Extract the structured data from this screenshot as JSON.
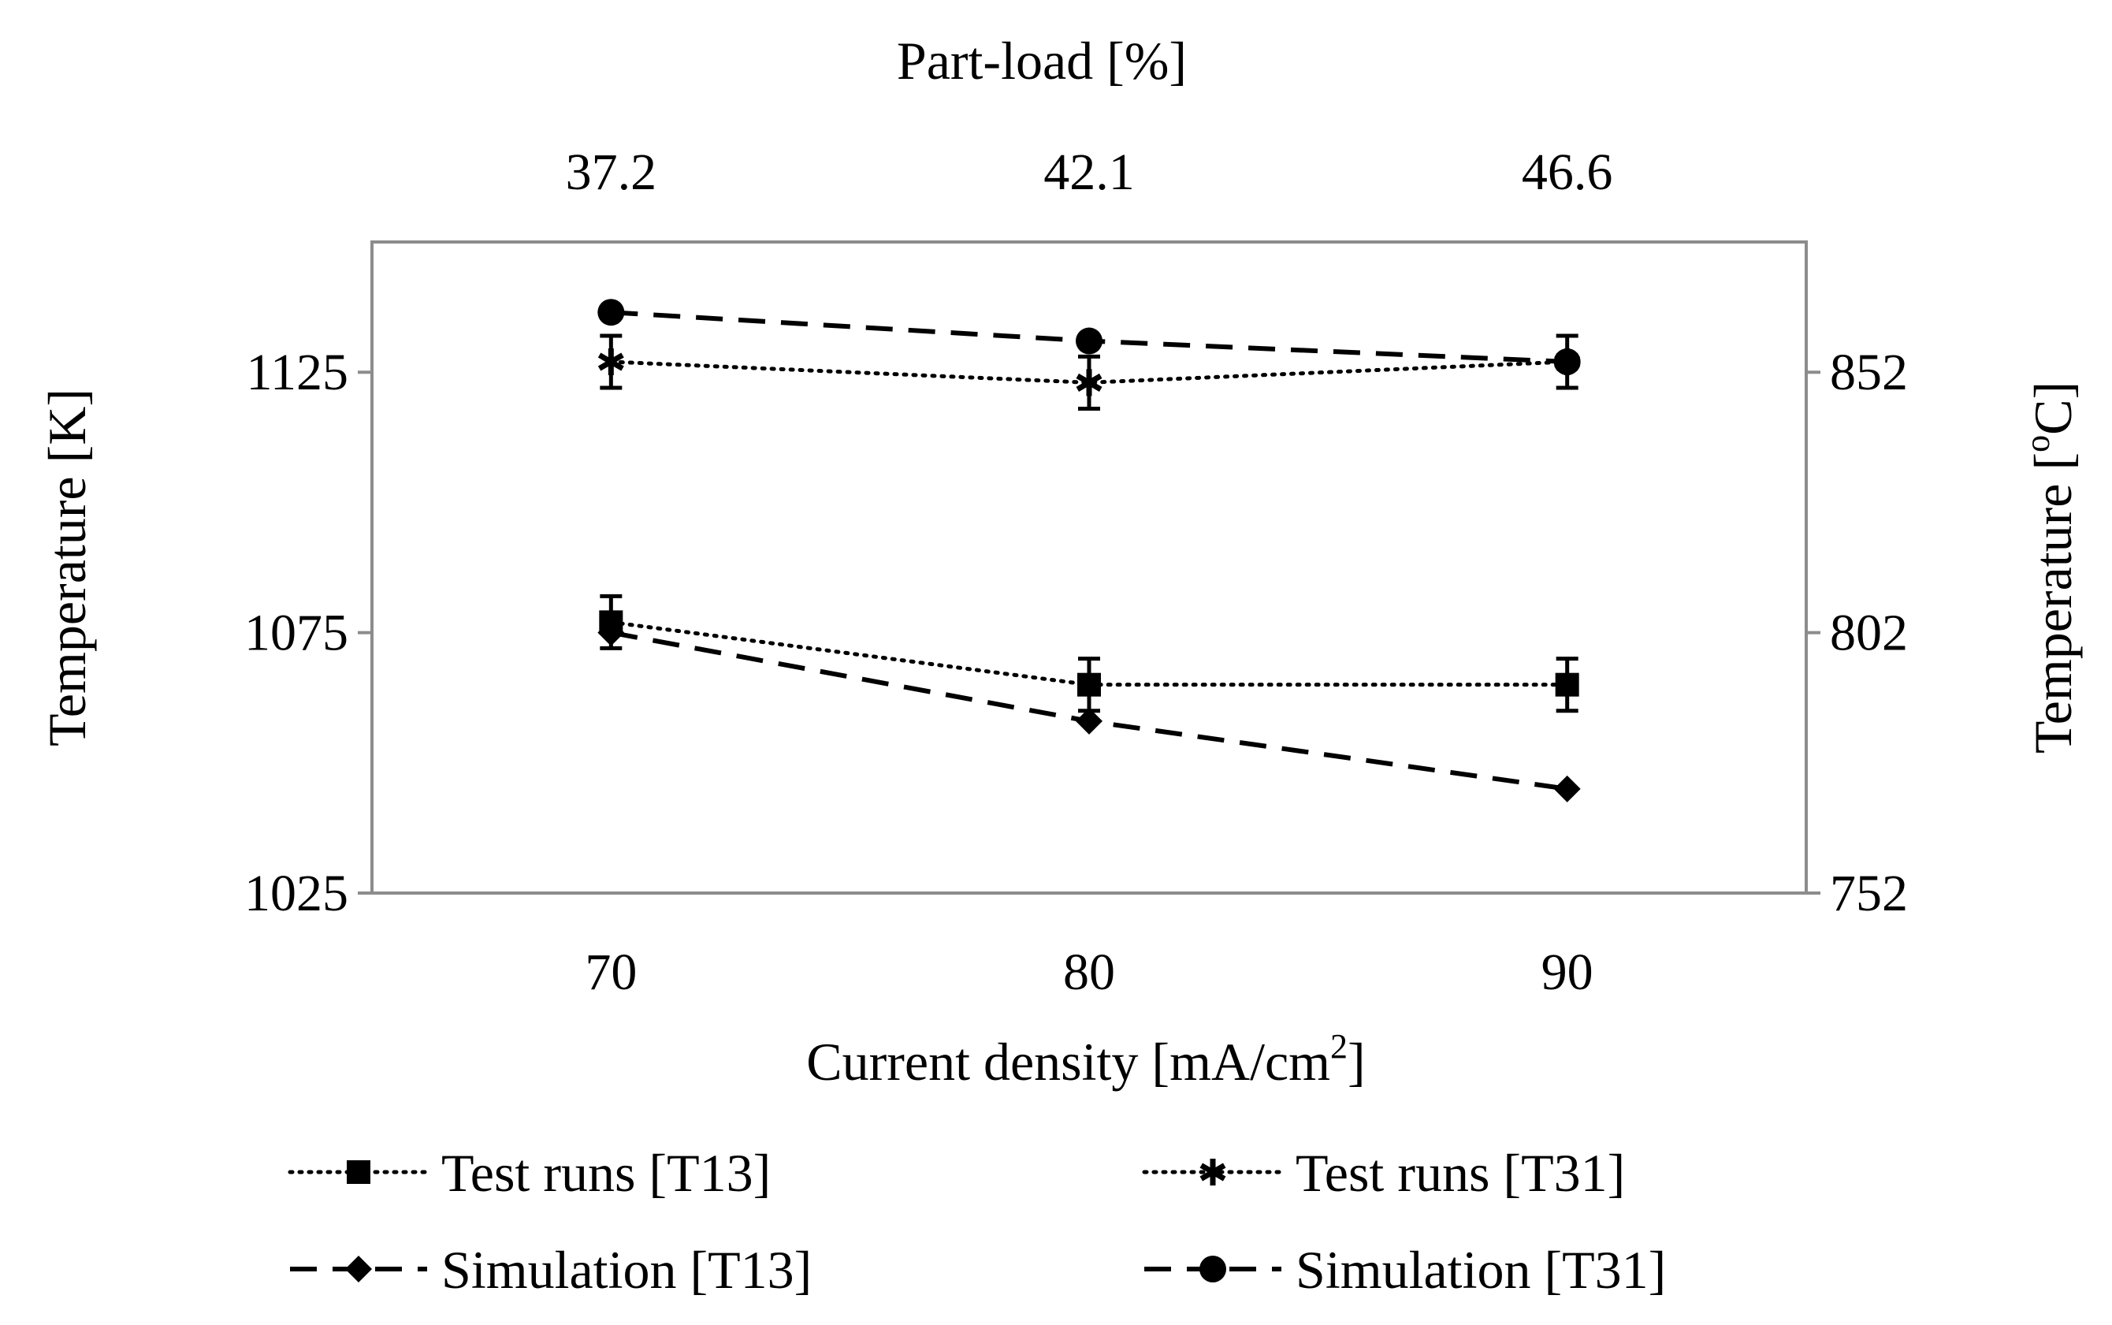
{
  "chart_data": {
    "type": "line",
    "xlabel": "Current density [mA/cm",
    "xlabel_sup": "2",
    "xlabel_close": "]",
    "top_xlabel": "Part-load [%]",
    "ylabel": "Temperature [K]",
    "ylabel_right": "Temperature [",
    "ylabel_right_sup": "o",
    "ylabel_right_close": "C]",
    "x": [
      70,
      80,
      90
    ],
    "x_tick_labels": [
      "70",
      "80",
      "90"
    ],
    "top_tick_labels": [
      "37.2",
      "42.1",
      "46.6"
    ],
    "xlim": [
      65,
      95
    ],
    "ylim": [
      1025,
      1150
    ],
    "y_ticks": [
      1025,
      1075,
      1125
    ],
    "y_tick_labels": [
      "1025",
      "1075",
      "1125"
    ],
    "right_ylim": [
      752,
      877
    ],
    "right_y_ticks": [
      752,
      802,
      852
    ],
    "right_y_tick_labels": [
      "752",
      "802",
      "852"
    ],
    "grid": false,
    "legend_position": "bottom",
    "series": [
      {
        "name": "Test runs [T13]",
        "style": "dotted",
        "marker": "square",
        "values": [
          1077,
          1065,
          1065
        ],
        "error": [
          5,
          5,
          5
        ]
      },
      {
        "name": "Test runs [T31]",
        "style": "dotted",
        "marker": "star",
        "values": [
          1127,
          1123,
          1127
        ],
        "error": [
          5,
          5,
          5
        ]
      },
      {
        "name": "Simulation [T13]",
        "style": "dashed",
        "marker": "diamond",
        "values": [
          1075,
          1058,
          1045
        ]
      },
      {
        "name": "Simulation [T31]",
        "style": "dashed",
        "marker": "circle",
        "values": [
          1136.5,
          1131,
          1127
        ]
      }
    ]
  }
}
